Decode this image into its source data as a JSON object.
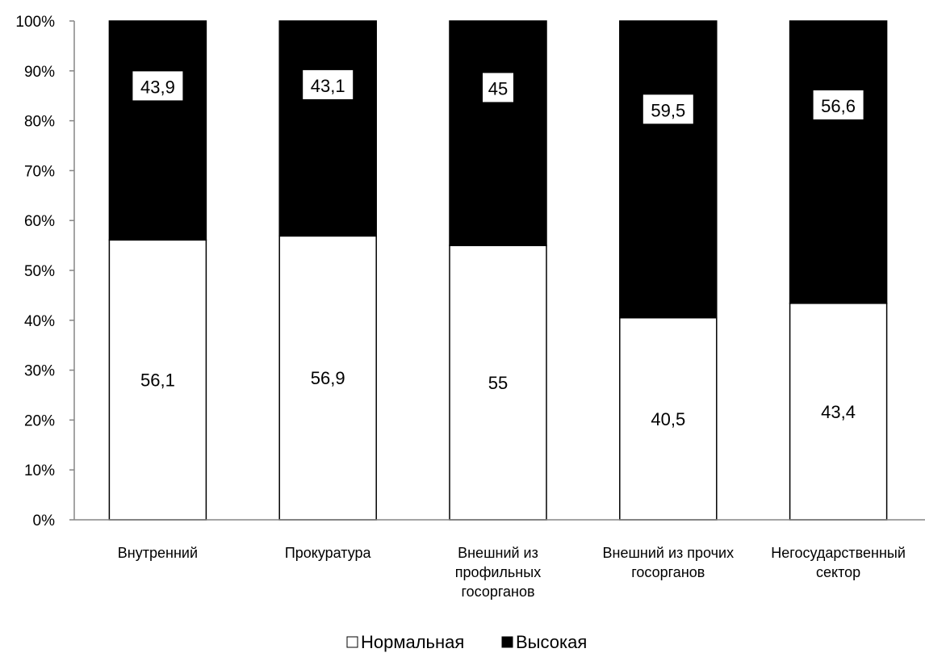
{
  "chart_data": {
    "type": "bar",
    "stacked": true,
    "percent_stacked": true,
    "categories": [
      [
        "Внутренний"
      ],
      [
        "Прокуратура"
      ],
      [
        "Внешний из",
        "профильных",
        "госорганов"
      ],
      [
        "Внешний из прочих",
        "госорганов"
      ],
      [
        "Негосударственный",
        "сектор"
      ]
    ],
    "series": [
      {
        "name": "Нормальная",
        "color": "#ffffff",
        "values": [
          56.1,
          56.9,
          55,
          40.5,
          43.4
        ],
        "labels": [
          "56,1",
          "56,9",
          "55",
          "40,5",
          "43,4"
        ]
      },
      {
        "name": "Высокая",
        "color": "#000000",
        "values": [
          43.9,
          43.1,
          45,
          59.5,
          56.6
        ],
        "labels": [
          "43,9",
          "43,1",
          "45",
          "59,5",
          "56,6"
        ]
      }
    ],
    "ylim": [
      0,
      100
    ],
    "yticks": [
      "0%",
      "10%",
      "20%",
      "30%",
      "40%",
      "50%",
      "60%",
      "70%",
      "80%",
      "90%",
      "100%"
    ],
    "grid": false,
    "legend_position": "bottom"
  }
}
